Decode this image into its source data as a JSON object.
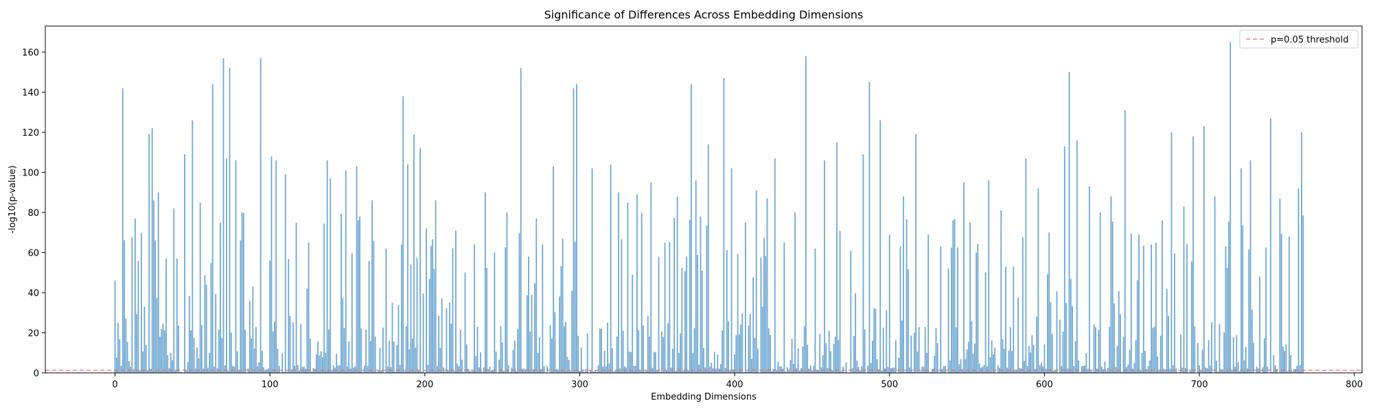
{
  "chart_data": {
    "type": "bar",
    "title": "Significance of Differences Across Embedding Dimensions",
    "xlabel": "Embedding Dimensions",
    "ylabel": "-log10(p-value)",
    "xlim": [
      -45,
      805
    ],
    "ylim": [
      0,
      173
    ],
    "xticks": [
      0,
      100,
      200,
      300,
      400,
      500,
      600,
      700,
      800
    ],
    "yticks": [
      0,
      20,
      40,
      60,
      80,
      100,
      120,
      140,
      160
    ],
    "grid": false,
    "legend_position": "top-right",
    "n_dimensions": 768,
    "bar_color": "#6fa8d3",
    "threshold": {
      "value": 1.3,
      "label": "p=0.05 threshold",
      "color": "#e8635a"
    },
    "x": [
      0,
      5,
      13,
      15,
      19,
      22,
      24,
      25,
      26,
      28,
      33,
      38,
      40,
      45,
      50,
      55,
      59,
      63,
      68,
      70,
      72,
      74,
      78,
      82,
      87,
      89,
      94,
      101,
      104,
      110,
      117,
      125,
      137,
      139,
      149,
      156,
      158,
      166,
      175,
      186,
      189,
      193,
      197,
      201,
      207,
      220,
      226,
      232,
      239,
      245,
      253,
      262,
      267,
      276,
      283,
      289,
      296,
      298,
      308,
      320,
      325,
      331,
      337,
      346,
      355,
      363,
      372,
      375,
      378,
      383,
      393,
      398,
      407,
      414,
      421,
      426,
      432,
      439,
      446,
      452,
      458,
      466,
      475,
      483,
      487,
      494,
      500,
      509,
      517,
      525,
      533,
      541,
      548,
      556,
      564,
      572,
      580,
      588,
      596,
      603,
      613,
      616,
      621,
      629,
      636,
      643,
      652,
      661,
      669,
      676,
      682,
      690,
      696,
      703,
      710,
      717,
      720,
      727,
      733,
      739,
      746,
      752,
      758,
      764,
      766
    ],
    "y": [
      46,
      142,
      77,
      56,
      33,
      119,
      122,
      86,
      66,
      90,
      57,
      82,
      57,
      109,
      126,
      85,
      44,
      144,
      75,
      157,
      107,
      152,
      106,
      80,
      36,
      43,
      157,
      108,
      106,
      99,
      75,
      65,
      106,
      97,
      101,
      103,
      78,
      86,
      62,
      138,
      104,
      119,
      112,
      72,
      86,
      71,
      50,
      64,
      90,
      60,
      80,
      152,
      58,
      64,
      103,
      67,
      142,
      144,
      102,
      104,
      90,
      85,
      89,
      95,
      65,
      88,
      144,
      96,
      78,
      114,
      147,
      102,
      75,
      91,
      87,
      107,
      65,
      80,
      158,
      62,
      106,
      115,
      61,
      109,
      145,
      126,
      69,
      88,
      119,
      69,
      63,
      76,
      95,
      60,
      96,
      81,
      53,
      107,
      92,
      70,
      113,
      150,
      116,
      93,
      80,
      88,
      131,
      69,
      64,
      76,
      120,
      83,
      118,
      123,
      88,
      63,
      165,
      102,
      106,
      48,
      127,
      87,
      68,
      92,
      120
    ]
  }
}
